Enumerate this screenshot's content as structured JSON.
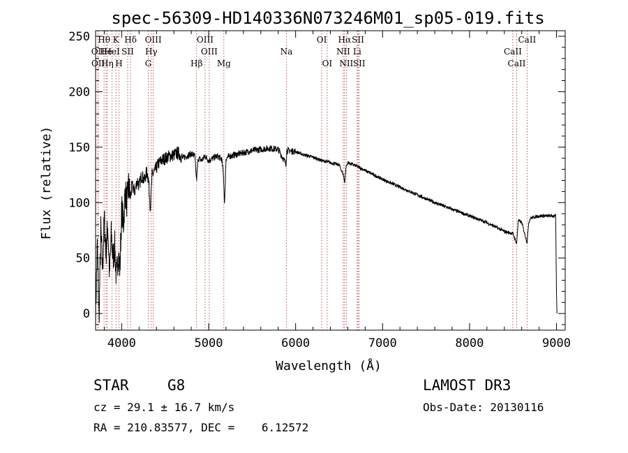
{
  "chart_data": {
    "type": "line",
    "title": "spec-56309-HD140336N073246M01_sp05-019.fits",
    "xlabel": "Wavelength (Å)",
    "ylabel": "Flux (relative)",
    "xlim": [
      3700,
      9100
    ],
    "ylim": [
      -15,
      255
    ],
    "xticks": [
      4000,
      5000,
      6000,
      7000,
      8000,
      9000
    ],
    "yticks": [
      0,
      50,
      100,
      150,
      200,
      250
    ],
    "xtick_labels": [
      "4000",
      "5000",
      "6000",
      "7000",
      "8000",
      "9000"
    ],
    "ytick_labels": [
      "0",
      "50",
      "100",
      "150",
      "200",
      "250"
    ],
    "series": [
      {
        "name": "flux",
        "x": [
          3700,
          3720,
          3740,
          3760,
          3780,
          3800,
          3820,
          3840,
          3860,
          3880,
          3900,
          3920,
          3940,
          3960,
          3980,
          4000,
          4020,
          4040,
          4060,
          4080,
          4100,
          4120,
          4150,
          4180,
          4200,
          4230,
          4260,
          4290,
          4310,
          4330,
          4350,
          4380,
          4420,
          4460,
          4500,
          4550,
          4600,
          4650,
          4700,
          4750,
          4800,
          4840,
          4861,
          4880,
          4920,
          4960,
          5000,
          5050,
          5100,
          5150,
          5170,
          5183,
          5200,
          5250,
          5300,
          5400,
          5500,
          5600,
          5700,
          5800,
          5889,
          5900,
          6000,
          6100,
          6200,
          6300,
          6400,
          6500,
          6550,
          6563,
          6580,
          6600,
          6700,
          6800,
          6900,
          7000,
          7200,
          7400,
          7600,
          7800,
          8000,
          8200,
          8400,
          8500,
          8542,
          8560,
          8600,
          8662,
          8680,
          8700,
          8800,
          8900,
          8990,
          9000,
          9005
        ],
        "y": [
          0,
          60,
          -5,
          75,
          40,
          85,
          55,
          80,
          35,
          70,
          50,
          60,
          30,
          55,
          40,
          95,
          80,
          110,
          100,
          115,
          105,
          115,
          110,
          120,
          115,
          125,
          120,
          128,
          120,
          95,
          125,
          128,
          135,
          138,
          140,
          142,
          143,
          145,
          140,
          142,
          144,
          142,
          120,
          140,
          138,
          142,
          138,
          140,
          142,
          139,
          125,
          98,
          140,
          142,
          143,
          145,
          147,
          148,
          149,
          148,
          135,
          147,
          146,
          143,
          141,
          138,
          136,
          134,
          125,
          118,
          132,
          136,
          133,
          129,
          125,
          121,
          114,
          107,
          100,
          94,
          88,
          82,
          74,
          72,
          63,
          84,
          82,
          64,
          82,
          86,
          88,
          88,
          88,
          20,
          0
        ]
      }
    ],
    "line_markers": [
      {
        "label": "Hθ",
        "x": 3797,
        "row": 1
      },
      {
        "label": "OII",
        "x": 3727,
        "row": 2
      },
      {
        "label": "OII",
        "x": 3729,
        "row": 3
      },
      {
        "label": "He",
        "x": 3820,
        "row": 2
      },
      {
        "label": "Hη",
        "x": 3835,
        "row": 3
      },
      {
        "label": "K",
        "x": 3934,
        "row": 1
      },
      {
        "label": "HeI",
        "x": 3889,
        "row": 2
      },
      {
        "label": "SII",
        "x": 4069,
        "row": 2
      },
      {
        "label": "H",
        "x": 3969,
        "row": 3
      },
      {
        "label": "Hδ",
        "x": 4102,
        "row": 1
      },
      {
        "label": "OIII",
        "x": 4363,
        "row": 1
      },
      {
        "label": "Hγ",
        "x": 4340,
        "row": 2
      },
      {
        "label": "G",
        "x": 4305,
        "row": 3
      },
      {
        "label": "Hβ",
        "x": 4861,
        "row": 3
      },
      {
        "label": "OIII",
        "x": 4959,
        "row": 1
      },
      {
        "label": "OIII",
        "x": 5007,
        "row": 2
      },
      {
        "label": "Mg",
        "x": 5175,
        "row": 3
      },
      {
        "label": "Na",
        "x": 5894,
        "row": 2
      },
      {
        "label": "OI",
        "x": 6300,
        "row": 1
      },
      {
        "label": "OI",
        "x": 6363,
        "row": 3
      },
      {
        "label": "Hα",
        "x": 6563,
        "row": 1
      },
      {
        "label": "NII",
        "x": 6548,
        "row": 2
      },
      {
        "label": "NII",
        "x": 6583,
        "row": 3
      },
      {
        "label": "SII",
        "x": 6717,
        "row": 1
      },
      {
        "label": "Li",
        "x": 6708,
        "row": 2
      },
      {
        "label": "SII",
        "x": 6731,
        "row": 3
      },
      {
        "label": "CaII",
        "x": 8662,
        "row": 1
      },
      {
        "label": "CaII",
        "x": 8498,
        "row": 2
      },
      {
        "label": "CaII",
        "x": 8542,
        "row": 3
      }
    ]
  },
  "info": {
    "obj_class": "STAR",
    "subclass": "G8",
    "survey": "LAMOST DR3",
    "cz_line": "cz = 29.1 ± 16.7 km/s",
    "obs_date": "Obs-Date: 20130116",
    "coords": "RA = 210.83577, DEC =    6.12572"
  }
}
